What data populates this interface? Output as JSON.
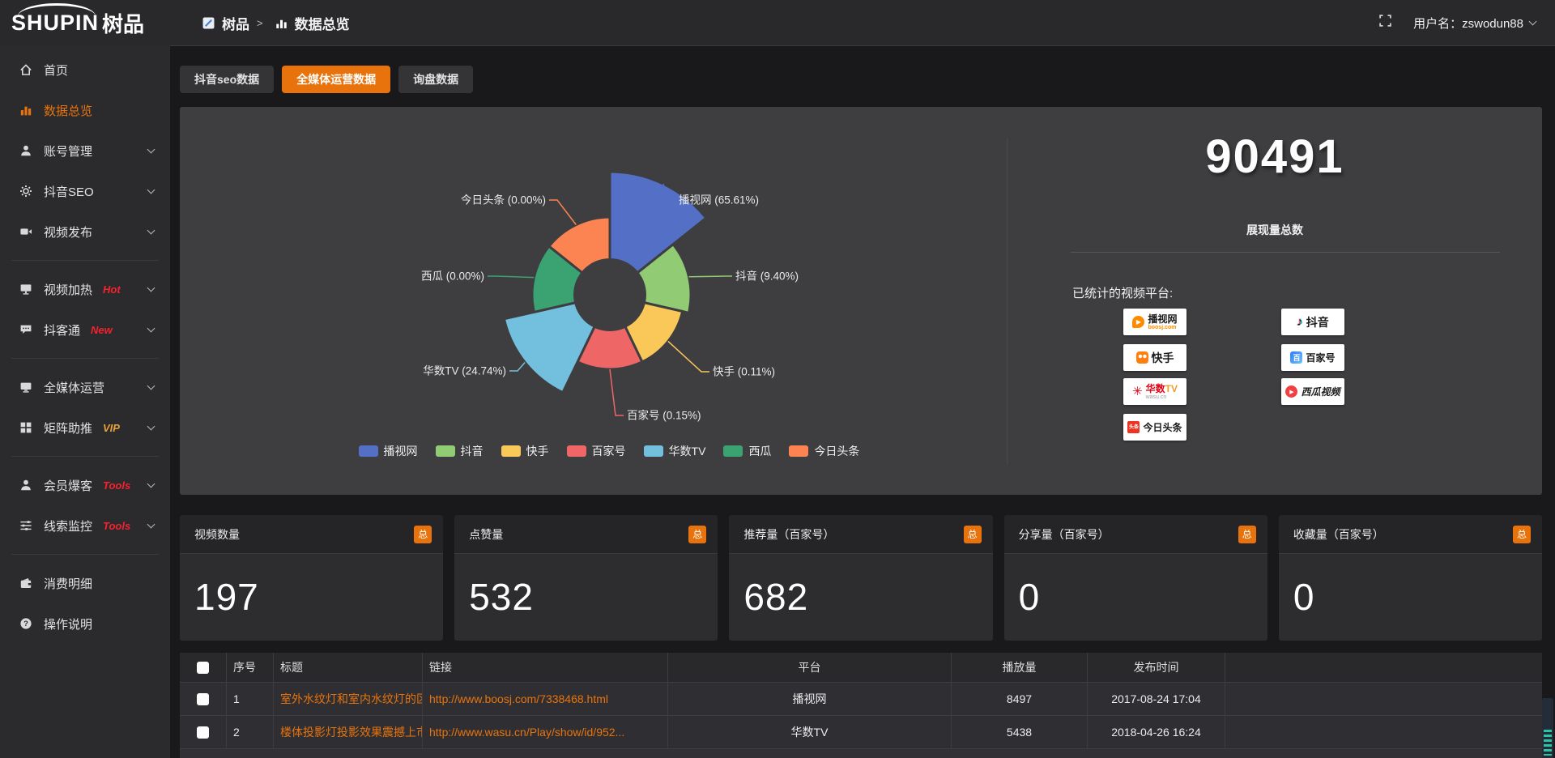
{
  "topbar": {
    "logo_en": "SHUPIN",
    "logo_cn": "树品",
    "breadcrumb_root": "树品",
    "breadcrumb_sep": ">",
    "breadcrumb_current": "数据总览",
    "username": "用户名：zswodun88"
  },
  "sidebar": {
    "items": [
      {
        "label": "首页"
      },
      {
        "label": "数据总览",
        "active": true
      },
      {
        "label": "账号管理"
      },
      {
        "label": "抖音SEO"
      },
      {
        "label": "视频发布"
      },
      {
        "label": "视频加热",
        "badge": "Hot"
      },
      {
        "label": "抖客通",
        "badge": "New"
      },
      {
        "label": "全媒体运营"
      },
      {
        "label": "矩阵助推",
        "badge": "VIP"
      },
      {
        "label": "会员爆客",
        "badge": "Tools"
      },
      {
        "label": "线索监控",
        "badge": "Tools"
      },
      {
        "label": "消费明细"
      },
      {
        "label": "操作说明"
      }
    ]
  },
  "tabs": [
    {
      "label": "抖音seo数据"
    },
    {
      "label": "全媒体运营数据",
      "active": true
    },
    {
      "label": "询盘数据"
    }
  ],
  "chart_data": {
    "type": "pie",
    "subtype": "nightingale-rose",
    "legend_position": "bottom",
    "slices": [
      {
        "name": "播视网",
        "percent": 65.61,
        "label": "播视网 (65.61%)",
        "color": "#5470c6",
        "radius": 152
      },
      {
        "name": "抖音",
        "percent": 9.4,
        "label": "抖音 (9.40%)",
        "color": "#91cc75",
        "radius": 100
      },
      {
        "name": "快手",
        "percent": 0.11,
        "label": "快手 (0.11%)",
        "color": "#fac858",
        "radius": 92
      },
      {
        "name": "百家号",
        "percent": 0.15,
        "label": "百家号 (0.15%)",
        "color": "#ee6666",
        "radius": 92
      },
      {
        "name": "华数TV",
        "percent": 24.74,
        "label": "华数TV (24.74%)",
        "color": "#73c0de",
        "radius": 134
      },
      {
        "name": "西瓜",
        "percent": 0.0,
        "label": "西瓜 (0.00%)",
        "color": "#3ba272",
        "radius": 96
      },
      {
        "name": "今日头条",
        "percent": 0.0,
        "label": "今日头条 (0.00%)",
        "color": "#fc8452",
        "radius": 96
      }
    ]
  },
  "summary": {
    "total_value": "90491",
    "total_label": "展现量总数",
    "platforms_label": "已统计的视频平台:",
    "platforms": [
      {
        "name": "播视网",
        "sub": "boosj.com"
      },
      {
        "name": "抖音"
      },
      {
        "name": "快手"
      },
      {
        "name": "百家号"
      },
      {
        "name": "华数",
        "name2": "TV",
        "sub": "wasu.cn"
      },
      {
        "name": "西瓜视频"
      },
      {
        "name": "今日头条",
        "icon_text": "头条"
      }
    ],
    "boosj_icon_glyph": "▶",
    "xigua_icon_glyph": "▶",
    "bjh_icon_glyph": "百"
  },
  "stat_cards": [
    {
      "title": "视频数量",
      "badge": "总",
      "value": "197"
    },
    {
      "title": "点赞量",
      "badge": "总",
      "value": "532"
    },
    {
      "title": "推荐量（百家号）",
      "badge": "总",
      "value": "682"
    },
    {
      "title": "分享量（百家号）",
      "badge": "总",
      "value": "0"
    },
    {
      "title": "收藏量（百家号）",
      "badge": "总",
      "value": "0"
    }
  ],
  "table": {
    "headers": [
      "序号",
      "标题",
      "链接",
      "平台",
      "播放量",
      "发布时间"
    ],
    "rows": [
      {
        "no": "1",
        "title": "室外水纹灯和室内水纹灯的区别和简介",
        "link": "http://www.boosj.com/7338468.html",
        "platform": "播视网",
        "plays": "8497",
        "time": "2017-08-24 17:04"
      },
      {
        "no": "2",
        "title": "楼体投影灯投影效果震撼上市",
        "link": "http://www.wasu.cn/Play/show/id/952...",
        "platform": "华数TV",
        "plays": "5438",
        "time": "2018-04-26 16:24"
      }
    ]
  }
}
